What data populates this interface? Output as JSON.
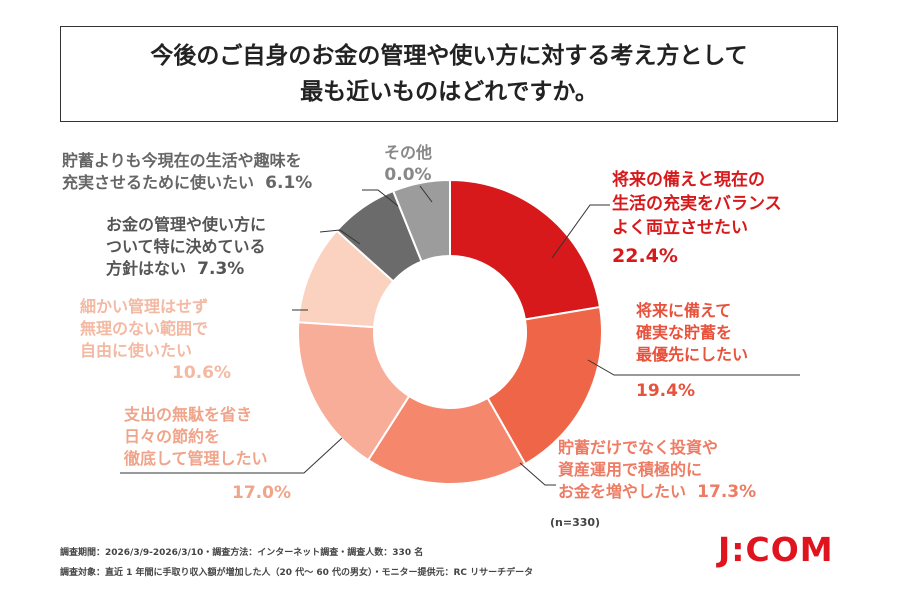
{
  "title": {
    "line1": "今後のご自身のお金の管理や使い方に対する考え方として",
    "line2": "最も近いものはどれですか。"
  },
  "chart_data": {
    "type": "pie",
    "slices": [
      {
        "label_lines": [
          "将来の備えと現在の",
          "生活の充実をバランス",
          "よく両立させたい"
        ],
        "value": 22.4,
        "pct_text": "22.4%",
        "color": "#d7191c"
      },
      {
        "label_lines": [
          "将来に備えて",
          "確実な貯蓄を",
          "最優先にしたい"
        ],
        "value": 19.4,
        "pct_text": "19.4%",
        "color": "#ef6548"
      },
      {
        "label_lines": [
          "貯蓄だけでなく投資や",
          "資産運用で積極的に",
          "お金を増やしたい"
        ],
        "value": 17.3,
        "pct_text": "17.3%",
        "color": "#f4876c"
      },
      {
        "label_lines": [
          "支出の無駄を省き",
          "日々の節約を",
          "徹底して管理したい"
        ],
        "value": 17.0,
        "pct_text": "17.0%",
        "color": "#f8ad98"
      },
      {
        "label_lines": [
          "細かい管理はせず",
          "無理のない範囲で",
          "自由に使いたい"
        ],
        "value": 10.6,
        "pct_text": "10.6%",
        "color": "#fbd1c0"
      },
      {
        "label_lines": [
          "お金の管理や使い方に",
          "ついて特に決めている",
          "方針はない"
        ],
        "value": 7.3,
        "pct_text": "7.3%",
        "color": "#6b6b6b"
      },
      {
        "label_lines": [
          "貯蓄よりも今現在の生活や趣味を",
          "充実させるために使いたい"
        ],
        "value": 6.1,
        "pct_text": "6.1%",
        "color": "#9c9c9c"
      },
      {
        "label_lines": [
          "その他"
        ],
        "value": 0.0,
        "pct_text": "0.0%",
        "color": "#cccccc"
      }
    ],
    "n_label": "(n=330)"
  },
  "footnote": {
    "line1": "調査期間：2026/3/9-2026/3/10・調査方法：インターネット調査・調査人数：330 名",
    "line2": "調査対象：直近 1 年間に手取り収入額が増加した人（20 代～ 60 代の男女）・モニター提供元：RC リサーチデータ"
  },
  "brand": "J:COM"
}
